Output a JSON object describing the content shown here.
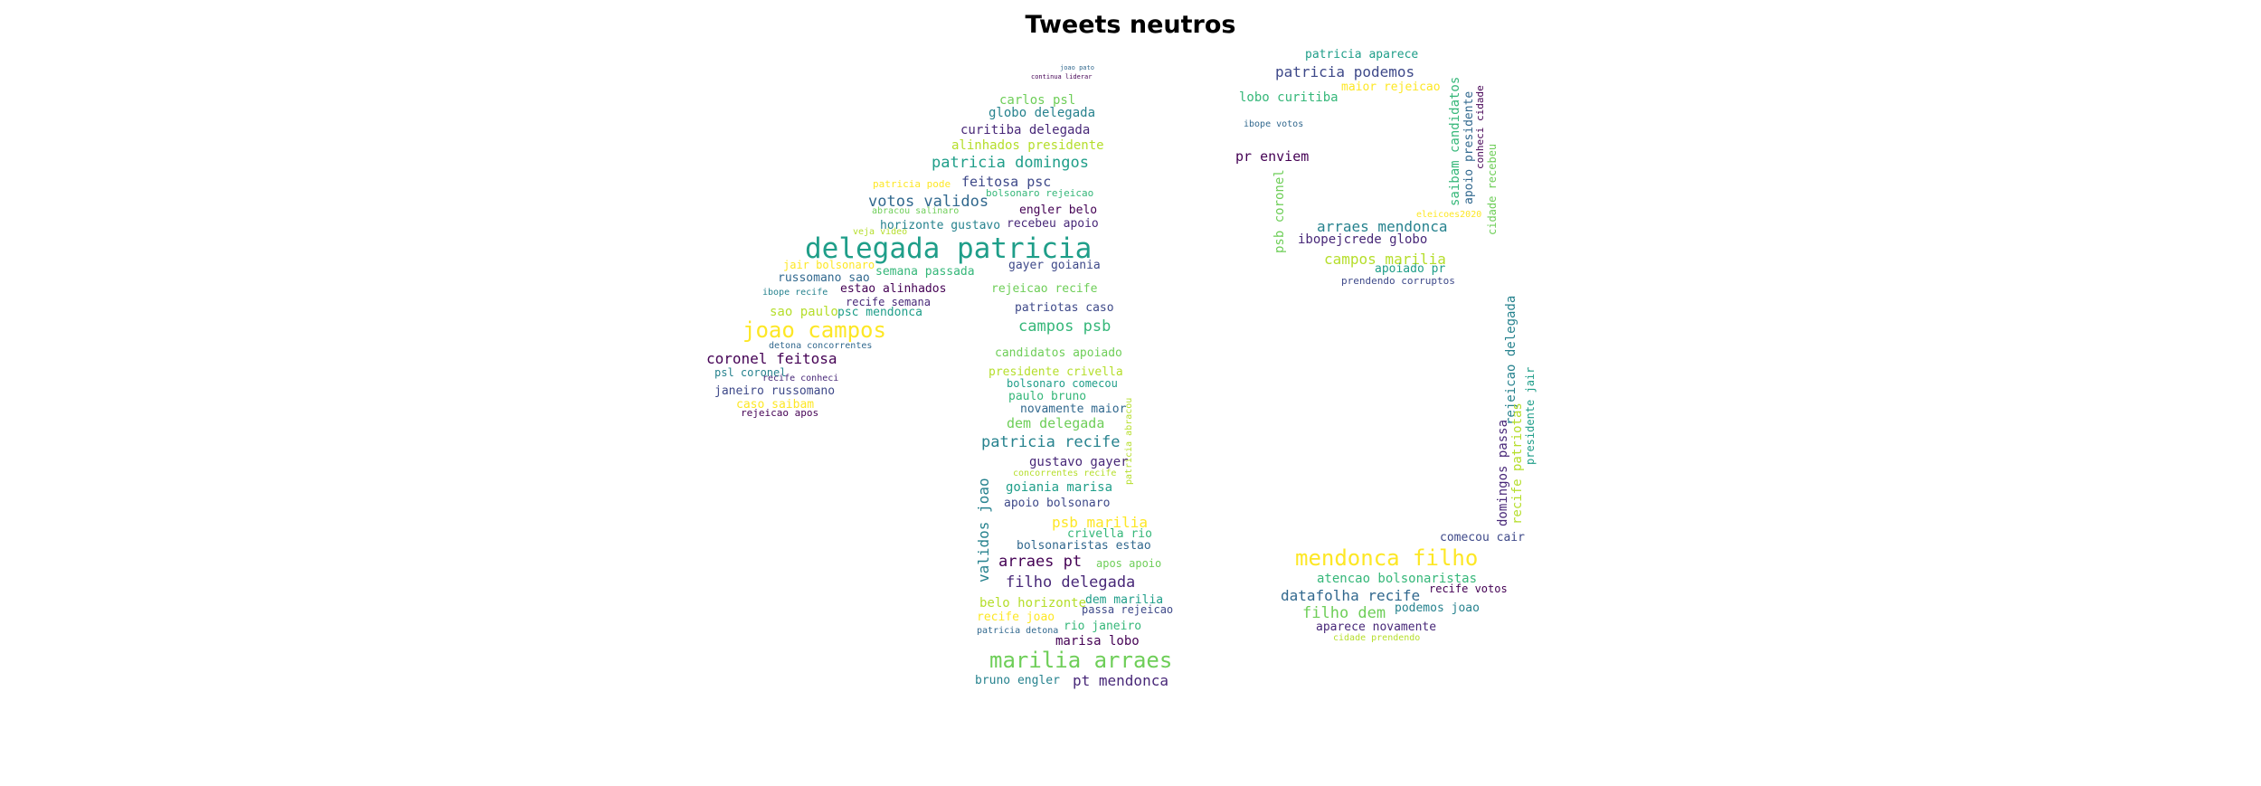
{
  "title": "Tweets neutros",
  "palette": [
    "#440154",
    "#482878",
    "#3e4989",
    "#31688e",
    "#26828e",
    "#1f9e89",
    "#35b779",
    "#6ece58",
    "#b5de2b",
    "#fde725"
  ],
  "words": [
    {
      "text": "joao pato"
    },
    {
      "text": "continua liderar"
    },
    {
      "text": "carlos psl"
    },
    {
      "text": "globo delegada"
    },
    {
      "text": "curitiba delegada"
    },
    {
      "text": "alinhados presidente"
    },
    {
      "text": "patricia domingos"
    },
    {
      "text": "feitosa psc"
    },
    {
      "text": "patricia pode"
    },
    {
      "text": "bolsonaro rejeicao"
    },
    {
      "text": "votos validos"
    },
    {
      "text": "engler belo"
    },
    {
      "text": "abracou salinaro"
    },
    {
      "text": "horizonte gustavo"
    },
    {
      "text": "recebeu apoio"
    },
    {
      "text": "veja video"
    },
    {
      "text": "delegada patricia"
    },
    {
      "text": "gayer goiania"
    },
    {
      "text": "jair bolsonaro"
    },
    {
      "text": "semana passada"
    },
    {
      "text": "russomano sao"
    },
    {
      "text": "estao alinhados"
    },
    {
      "text": "rejeicao recife"
    },
    {
      "text": "ibope recife"
    },
    {
      "text": "recife semana"
    },
    {
      "text": "sao paulo"
    },
    {
      "text": "psc mendonca"
    },
    {
      "text": "patriotas caso"
    },
    {
      "text": "joao campos"
    },
    {
      "text": "campos psb"
    },
    {
      "text": "detona concorrentes"
    },
    {
      "text": "coronel feitosa"
    },
    {
      "text": "candidatos apoiado"
    },
    {
      "text": "psl coronel"
    },
    {
      "text": "recife conheci"
    },
    {
      "text": "presidente crivella"
    },
    {
      "text": "bolsonaro comecou"
    },
    {
      "text": "janeiro russomano"
    },
    {
      "text": "caso saibam"
    },
    {
      "text": "paulo bruno"
    },
    {
      "text": "novamente maior"
    },
    {
      "text": "rejeicao apos"
    },
    {
      "text": "dem delegada"
    },
    {
      "text": "patricia recife"
    },
    {
      "text": "gustavo gayer"
    },
    {
      "text": "concorrentes recife"
    },
    {
      "text": "goiania marisa"
    },
    {
      "text": "apoio bolsonaro"
    },
    {
      "text": "psb marilia"
    },
    {
      "text": "crivella rio"
    },
    {
      "text": "bolsonaristas estao"
    },
    {
      "text": "arraes pt"
    },
    {
      "text": "apos apoio"
    },
    {
      "text": "validos joao"
    },
    {
      "text": "filho delegada"
    },
    {
      "text": "belo horizonte"
    },
    {
      "text": "dem marilia"
    },
    {
      "text": "passa rejeicao"
    },
    {
      "text": "recife joao"
    },
    {
      "text": "rio janeiro"
    },
    {
      "text": "patricia detona"
    },
    {
      "text": "marisa lobo"
    },
    {
      "text": "marilia arraes"
    },
    {
      "text": "bruno engler"
    },
    {
      "text": "pt mendonca"
    },
    {
      "text": "patricia abracou"
    },
    {
      "text": "patricia aparece"
    },
    {
      "text": "patricia podemos"
    },
    {
      "text": "maior rejeicao"
    },
    {
      "text": "lobo curitiba"
    },
    {
      "text": "ibope votos"
    },
    {
      "text": "pr enviem"
    },
    {
      "text": "psb coronel"
    },
    {
      "text": "arraes mendonca"
    },
    {
      "text": "ibopejcrede globo"
    },
    {
      "text": "campos marilia"
    },
    {
      "text": "apoiado pr"
    },
    {
      "text": "prendendo corruptos"
    },
    {
      "text": "eleicoes2020"
    },
    {
      "text": "saibam candidatos"
    },
    {
      "text": "apoio presidente"
    },
    {
      "text": "conheci cidade"
    },
    {
      "text": "cidade recebeu"
    },
    {
      "text": "rejeicao delegada"
    },
    {
      "text": "domingos passa"
    },
    {
      "text": "recife patriotas"
    },
    {
      "text": "presidente jair"
    },
    {
      "text": "comecou cair"
    },
    {
      "text": "mendonca filho"
    },
    {
      "text": "atencao bolsonaristas"
    },
    {
      "text": "datafolha recife"
    },
    {
      "text": "recife votos"
    },
    {
      "text": "filho dem"
    },
    {
      "text": "podemos joao"
    },
    {
      "text": "aparece novamente"
    },
    {
      "text": "cidade prendendo"
    }
  ]
}
